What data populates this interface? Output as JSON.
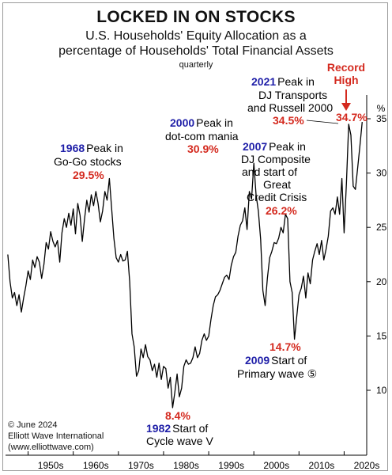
{
  "header": {
    "title": "LOCKED IN ON STOCKS",
    "subtitle_line1": "U.S. Households' Equity Allocation as a",
    "subtitle_line2": "percentage of Households' Total Financial Assets",
    "frequency": "quarterly"
  },
  "credit": {
    "line1": "© June 2024",
    "line2": "Elliott Wave International",
    "line3": "(www.elliottwave.com)"
  },
  "chart_data": {
    "type": "line",
    "title": "LOCKED IN ON STOCKS",
    "ylabel": "%",
    "ylim": [
      6,
      37
    ],
    "xlim": [
      1945,
      2025
    ],
    "y_ticks": [
      10,
      15,
      20,
      25,
      30,
      35
    ],
    "x_tick_labels": [
      "1950s",
      "1960s",
      "1970s",
      "1980s",
      "1990s",
      "2000s",
      "2010s",
      "2020s"
    ],
    "y_axis_side": "right",
    "grid": false,
    "line_color": "#000000",
    "series": [
      {
        "x": [
          1945.5,
          1946.0,
          1946.5,
          1947.0,
          1947.5,
          1948.0,
          1948.5,
          1949.0,
          1949.5,
          1950.0,
          1950.5,
          1951.0,
          1951.5,
          1952.0,
          1952.5,
          1953.0,
          1953.5,
          1954.0,
          1954.5,
          1955.0,
          1955.5,
          1956.0,
          1956.5,
          1957.0,
          1957.5,
          1958.0,
          1958.5,
          1959.0,
          1959.5,
          1960.0,
          1960.5,
          1961.0,
          1961.5,
          1962.0,
          1962.5,
          1963.0,
          1963.5,
          1964.0,
          1964.5,
          1965.0,
          1965.5,
          1966.0,
          1966.5,
          1967.0,
          1967.5,
          1968.0,
          1968.5,
          1969.0,
          1969.5,
          1970.0,
          1970.5,
          1971.0,
          1971.5,
          1972.0,
          1972.5,
          1973.0,
          1973.5,
          1974.0,
          1974.5,
          1975.0,
          1975.5,
          1976.0,
          1976.5,
          1977.0,
          1977.5,
          1978.0,
          1978.5,
          1979.0,
          1979.5,
          1980.0,
          1980.5,
          1981.0,
          1981.5,
          1982.0,
          1982.5,
          1983.0,
          1983.5,
          1984.0,
          1984.5,
          1985.0,
          1985.5,
          1986.0,
          1986.5,
          1987.0,
          1987.5,
          1988.0,
          1988.5,
          1989.0,
          1989.5,
          1990.0,
          1990.5,
          1991.0,
          1991.5,
          1992.0,
          1992.5,
          1993.0,
          1993.5,
          1994.0,
          1994.5,
          1995.0,
          1995.5,
          1996.0,
          1996.5,
          1997.0,
          1997.5,
          1998.0,
          1998.5,
          1999.0,
          1999.5,
          2000.0,
          2000.5,
          2001.0,
          2001.5,
          2002.0,
          2002.5,
          2003.0,
          2003.5,
          2004.0,
          2004.5,
          2005.0,
          2005.5,
          2006.0,
          2006.5,
          2007.0,
          2007.5,
          2008.0,
          2008.5,
          2009.0,
          2009.5,
          2010.0,
          2010.5,
          2011.0,
          2011.5,
          2012.0,
          2012.5,
          2013.0,
          2013.5,
          2014.0,
          2014.5,
          2015.0,
          2015.5,
          2016.0,
          2016.5,
          2017.0,
          2017.5,
          2018.0,
          2018.5,
          2019.0,
          2019.5,
          2020.0,
          2020.5,
          2021.0,
          2021.5,
          2022.0,
          2022.5,
          2023.0,
          2023.5,
          2024.0
        ],
        "y": [
          22.5,
          20.0,
          18.5,
          19.0,
          17.8,
          18.8,
          17.2,
          18.5,
          19.6,
          21.0,
          20.2,
          22.0,
          21.3,
          22.3,
          21.8,
          20.3,
          21.6,
          23.6,
          23.0,
          24.6,
          23.7,
          23.2,
          23.8,
          21.8,
          24.5,
          25.8,
          25.0,
          26.3,
          25.2,
          26.7,
          24.4,
          27.2,
          26.1,
          23.7,
          25.8,
          27.5,
          26.4,
          28.0,
          27.0,
          28.3,
          27.2,
          25.5,
          26.5,
          28.3,
          27.5,
          29.5,
          26.8,
          24.0,
          22.2,
          21.8,
          22.5,
          21.9,
          22.0,
          22.8,
          20.0,
          15.2,
          14.0,
          11.3,
          11.8,
          13.8,
          13.0,
          14.2,
          13.1,
          12.8,
          11.8,
          12.4,
          11.2,
          12.5,
          11.0,
          12.2,
          12.0,
          10.2,
          11.2,
          8.4,
          9.8,
          11.5,
          9.4,
          10.2,
          12.2,
          12.8,
          12.4,
          12.5,
          13.0,
          14.0,
          13.0,
          13.4,
          14.6,
          15.2,
          14.6,
          15.0,
          16.5,
          17.8,
          18.6,
          18.8,
          19.2,
          19.8,
          20.4,
          20.6,
          20.2,
          21.5,
          22.3,
          22.7,
          24.2,
          25.2,
          25.6,
          26.8,
          24.8,
          28.3,
          27.6,
          30.9,
          28.0,
          26.5,
          23.9,
          19.2,
          17.8,
          20.3,
          22.2,
          22.8,
          23.6,
          23.5,
          24.0,
          25.0,
          24.5,
          26.2,
          25.8,
          20.0,
          19.0,
          14.7,
          16.8,
          18.8,
          19.4,
          20.5,
          18.5,
          20.8,
          19.8,
          22.0,
          22.8,
          23.5,
          22.5,
          23.8,
          22.0,
          23.0,
          24.2,
          26.5,
          26.8,
          26.2,
          27.8,
          26.2,
          29.5,
          24.5,
          29.0,
          34.5,
          33.5,
          28.8,
          28.5,
          30.5,
          32.5,
          34.7
        ]
      }
    ],
    "annotations": [
      {
        "year": "1968",
        "text_lines": [
          "Peak in",
          "Go-Go stocks"
        ],
        "value": "29.5%"
      },
      {
        "year": "1982",
        "text_lines": [
          "Start of",
          "Cycle wave V"
        ],
        "value": "8.4%"
      },
      {
        "year": "2000",
        "text_lines": [
          "Peak in",
          "dot-com mania"
        ],
        "value": "30.9%"
      },
      {
        "year": "2007",
        "text_lines": [
          "Peak in",
          "DJ Composite",
          "and start of",
          "Great",
          "Credit Crisis"
        ],
        "value": "26.2%"
      },
      {
        "year": "2009",
        "text_lines": [
          "Start of",
          "Primary wave ⑤"
        ],
        "value": "14.7%"
      },
      {
        "year": "2021",
        "text_lines": [
          "Peak in",
          "DJ Transports",
          "and Russell 2000"
        ],
        "value": "34.5%"
      },
      {
        "year": "",
        "text_lines": [
          "Record",
          "High"
        ],
        "value": "34.7%"
      }
    ]
  }
}
